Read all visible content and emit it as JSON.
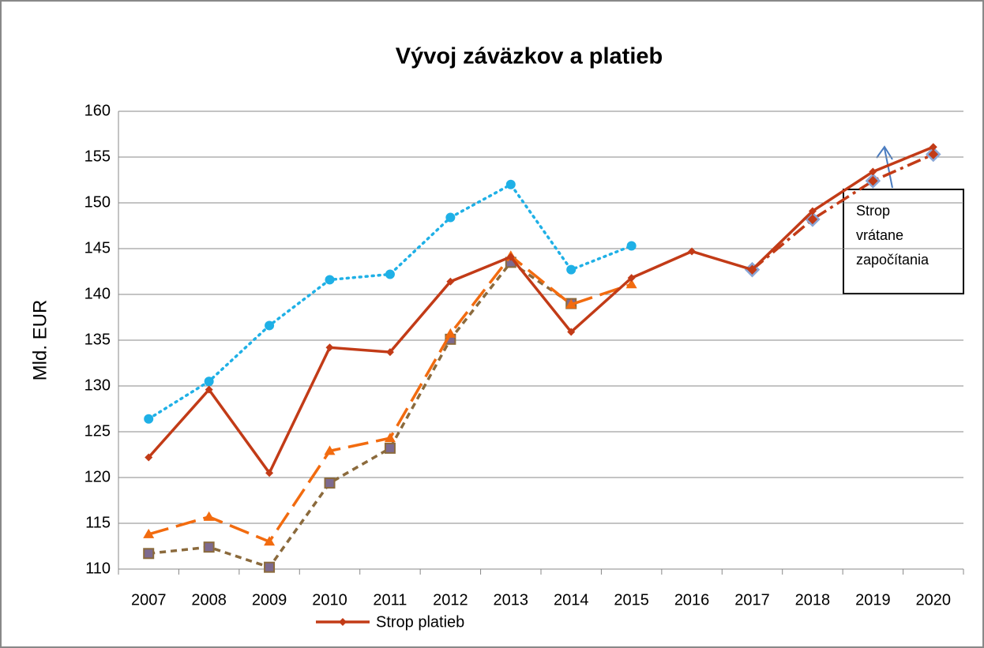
{
  "chart_data": {
    "type": "line",
    "title": "Vývoj záväzkov a platieb",
    "y_label": "Mld. EUR",
    "categories": [
      "2007",
      "2008",
      "2009",
      "2010",
      "2011",
      "2012",
      "2013",
      "2014",
      "2015",
      "2016",
      "2017",
      "2018",
      "2019",
      "2020"
    ],
    "ylim": [
      110,
      160
    ],
    "yticks": [
      110,
      115,
      120,
      125,
      130,
      135,
      140,
      145,
      150,
      155,
      160
    ],
    "grid": true,
    "legend": "bottom",
    "series": [
      {
        "name": "Strop platieb",
        "color": "#c23b17",
        "dash": "solid",
        "marker": "diamond",
        "values": [
          122.2,
          129.6,
          120.5,
          134.2,
          133.7,
          141.4,
          144.1,
          135.9,
          141.8,
          144.7,
          142.7,
          149.1,
          153.4,
          156.1
        ]
      },
      {
        "color": "#1fb0e6",
        "dash": "dotted",
        "marker": "circle",
        "values": [
          126.4,
          130.5,
          136.6,
          141.6,
          142.2,
          148.4,
          152.0,
          142.7,
          145.3,
          null,
          null,
          null,
          null,
          null
        ]
      },
      {
        "color": "#f26b0f",
        "dash": "longdash",
        "marker": "triangle",
        "values": [
          113.8,
          115.7,
          113.0,
          122.9,
          124.3,
          135.7,
          144.2,
          138.9,
          141.1,
          null,
          null,
          null,
          null,
          null
        ]
      },
      {
        "color": "#8b6a3c",
        "dash": "shortdash",
        "marker": "square",
        "values": [
          111.7,
          112.4,
          110.2,
          119.4,
          123.2,
          135.1,
          143.5,
          139.0,
          null,
          null,
          null,
          null,
          null,
          null
        ]
      },
      {
        "color": "#c23b17",
        "dash": "dashdot",
        "marker": "bigdiamond",
        "values": [
          null,
          null,
          null,
          null,
          null,
          null,
          null,
          null,
          null,
          null,
          142.7,
          148.2,
          152.4,
          155.3
        ]
      }
    ],
    "annotation": [
      "Strop",
      "vrátane",
      "započítania"
    ]
  }
}
